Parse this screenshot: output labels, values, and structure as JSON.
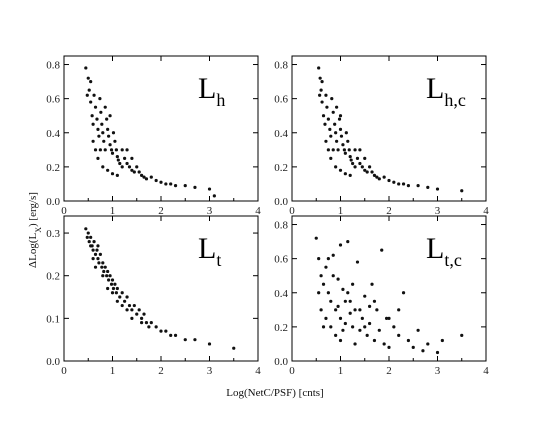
{
  "chart_data": [
    {
      "type": "scatter",
      "panel_label": {
        "main": "L",
        "sub": "h"
      },
      "xlim": [
        0,
        4
      ],
      "ylim": [
        0,
        0.85
      ],
      "xticks": [
        "0",
        "1",
        "2",
        "3",
        "4"
      ],
      "yticks": [
        "0.0",
        "0.2",
        "0.4",
        "0.6",
        "0.8"
      ],
      "xtick_values": [
        0,
        1,
        2,
        3,
        4
      ],
      "ytick_values": [
        0,
        0.2,
        0.4,
        0.6,
        0.8
      ],
      "grid": false,
      "points": [
        [
          0.45,
          0.78
        ],
        [
          0.5,
          0.72
        ],
        [
          0.52,
          0.65
        ],
        [
          0.55,
          0.58
        ],
        [
          0.58,
          0.5
        ],
        [
          0.6,
          0.45
        ],
        [
          0.62,
          0.62
        ],
        [
          0.65,
          0.55
        ],
        [
          0.68,
          0.48
        ],
        [
          0.7,
          0.42
        ],
        [
          0.72,
          0.38
        ],
        [
          0.74,
          0.6
        ],
        [
          0.76,
          0.52
        ],
        [
          0.78,
          0.45
        ],
        [
          0.8,
          0.4
        ],
        [
          0.82,
          0.35
        ],
        [
          0.85,
          0.3
        ],
        [
          0.88,
          0.48
        ],
        [
          0.9,
          0.42
        ],
        [
          0.92,
          0.38
        ],
        [
          0.95,
          0.33
        ],
        [
          0.98,
          0.3
        ],
        [
          1.0,
          0.28
        ],
        [
          1.02,
          0.4
        ],
        [
          1.05,
          0.35
        ],
        [
          1.08,
          0.3
        ],
        [
          1.1,
          0.26
        ],
        [
          1.12,
          0.24
        ],
        [
          1.15,
          0.22
        ],
        [
          1.2,
          0.3
        ],
        [
          1.25,
          0.25
        ],
        [
          1.3,
          0.22
        ],
        [
          1.35,
          0.2
        ],
        [
          1.4,
          0.18
        ],
        [
          1.45,
          0.17
        ],
        [
          1.5,
          0.2
        ],
        [
          1.55,
          0.17
        ],
        [
          1.6,
          0.15
        ],
        [
          1.65,
          0.14
        ],
        [
          1.7,
          0.13
        ],
        [
          1.8,
          0.14
        ],
        [
          1.9,
          0.12
        ],
        [
          2.0,
          0.11
        ],
        [
          2.1,
          0.1
        ],
        [
          2.2,
          0.1
        ],
        [
          2.3,
          0.09
        ],
        [
          2.5,
          0.09
        ],
        [
          2.7,
          0.08
        ],
        [
          3.0,
          0.07
        ],
        [
          3.1,
          0.03
        ],
        [
          0.48,
          0.62
        ],
        [
          0.55,
          0.7
        ],
        [
          0.6,
          0.35
        ],
        [
          0.7,
          0.25
        ],
        [
          0.8,
          0.2
        ],
        [
          0.9,
          0.18
        ],
        [
          1.0,
          0.16
        ],
        [
          1.1,
          0.15
        ],
        [
          0.95,
          0.5
        ],
        [
          0.85,
          0.55
        ],
        [
          1.3,
          0.3
        ],
        [
          1.4,
          0.25
        ],
        [
          1.2,
          0.2
        ],
        [
          0.75,
          0.3
        ],
        [
          0.65,
          0.3
        ]
      ]
    },
    {
      "type": "scatter",
      "panel_label": {
        "main": "L",
        "sub": "h,c"
      },
      "xlim": [
        0,
        4
      ],
      "ylim": [
        0,
        0.85
      ],
      "xticks": [
        "0",
        "1",
        "2",
        "3",
        "4"
      ],
      "yticks": [
        "0.0",
        "0.2",
        "0.4",
        "0.6",
        "0.8"
      ],
      "xtick_values": [
        0,
        1,
        2,
        3,
        4
      ],
      "ytick_values": [
        0,
        0.2,
        0.4,
        0.6,
        0.8
      ],
      "grid": false,
      "points": [
        [
          0.55,
          0.78
        ],
        [
          0.58,
          0.72
        ],
        [
          0.6,
          0.65
        ],
        [
          0.62,
          0.58
        ],
        [
          0.65,
          0.5
        ],
        [
          0.68,
          0.45
        ],
        [
          0.7,
          0.62
        ],
        [
          0.72,
          0.55
        ],
        [
          0.75,
          0.48
        ],
        [
          0.78,
          0.42
        ],
        [
          0.8,
          0.38
        ],
        [
          0.82,
          0.6
        ],
        [
          0.85,
          0.52
        ],
        [
          0.88,
          0.45
        ],
        [
          0.9,
          0.4
        ],
        [
          0.92,
          0.35
        ],
        [
          0.95,
          0.3
        ],
        [
          0.98,
          0.48
        ],
        [
          1.0,
          0.42
        ],
        [
          1.02,
          0.38
        ],
        [
          1.05,
          0.33
        ],
        [
          1.08,
          0.3
        ],
        [
          1.1,
          0.28
        ],
        [
          1.12,
          0.4
        ],
        [
          1.15,
          0.35
        ],
        [
          1.18,
          0.3
        ],
        [
          1.2,
          0.26
        ],
        [
          1.22,
          0.24
        ],
        [
          1.25,
          0.22
        ],
        [
          1.3,
          0.3
        ],
        [
          1.35,
          0.25
        ],
        [
          1.4,
          0.22
        ],
        [
          1.45,
          0.2
        ],
        [
          1.5,
          0.18
        ],
        [
          1.55,
          0.17
        ],
        [
          1.6,
          0.2
        ],
        [
          1.65,
          0.17
        ],
        [
          1.7,
          0.15
        ],
        [
          1.75,
          0.14
        ],
        [
          1.8,
          0.13
        ],
        [
          1.9,
          0.14
        ],
        [
          2.0,
          0.12
        ],
        [
          2.1,
          0.11
        ],
        [
          2.2,
          0.1
        ],
        [
          2.3,
          0.1
        ],
        [
          2.4,
          0.09
        ],
        [
          2.6,
          0.09
        ],
        [
          2.8,
          0.08
        ],
        [
          3.0,
          0.07
        ],
        [
          3.5,
          0.06
        ],
        [
          0.57,
          0.62
        ],
        [
          0.62,
          0.7
        ],
        [
          0.7,
          0.35
        ],
        [
          0.8,
          0.25
        ],
        [
          0.9,
          0.2
        ],
        [
          1.0,
          0.18
        ],
        [
          1.1,
          0.16
        ],
        [
          1.2,
          0.15
        ],
        [
          1.0,
          0.5
        ],
        [
          0.92,
          0.55
        ],
        [
          1.4,
          0.3
        ],
        [
          1.5,
          0.25
        ],
        [
          1.3,
          0.2
        ],
        [
          0.85,
          0.3
        ],
        [
          0.75,
          0.3
        ]
      ]
    },
    {
      "type": "scatter",
      "panel_label": {
        "main": "L",
        "sub": "t"
      },
      "xlim": [
        0,
        4
      ],
      "ylim": [
        0,
        0.34
      ],
      "xticks": [
        "0",
        "1",
        "2",
        "3",
        "4"
      ],
      "yticks": [
        "0.0",
        "0.1",
        "0.2",
        "0.3"
      ],
      "xtick_values": [
        0,
        1,
        2,
        3,
        4
      ],
      "ytick_values": [
        0,
        0.1,
        0.2,
        0.3
      ],
      "grid": false,
      "points": [
        [
          0.45,
          0.31
        ],
        [
          0.5,
          0.3
        ],
        [
          0.52,
          0.28
        ],
        [
          0.55,
          0.29
        ],
        [
          0.58,
          0.27
        ],
        [
          0.6,
          0.26
        ],
        [
          0.62,
          0.28
        ],
        [
          0.65,
          0.25
        ],
        [
          0.68,
          0.26
        ],
        [
          0.7,
          0.24
        ],
        [
          0.72,
          0.23
        ],
        [
          0.75,
          0.25
        ],
        [
          0.78,
          0.22
        ],
        [
          0.8,
          0.23
        ],
        [
          0.82,
          0.21
        ],
        [
          0.85,
          0.22
        ],
        [
          0.88,
          0.2
        ],
        [
          0.9,
          0.21
        ],
        [
          0.92,
          0.19
        ],
        [
          0.95,
          0.2
        ],
        [
          0.98,
          0.18
        ],
        [
          1.0,
          0.19
        ],
        [
          1.02,
          0.17
        ],
        [
          1.05,
          0.18
        ],
        [
          1.08,
          0.16
        ],
        [
          1.1,
          0.17
        ],
        [
          1.15,
          0.15
        ],
        [
          1.2,
          0.16
        ],
        [
          1.25,
          0.14
        ],
        [
          1.3,
          0.15
        ],
        [
          1.35,
          0.13
        ],
        [
          1.4,
          0.12
        ],
        [
          1.45,
          0.13
        ],
        [
          1.5,
          0.11
        ],
        [
          1.55,
          0.12
        ],
        [
          1.6,
          0.1
        ],
        [
          1.65,
          0.11
        ],
        [
          1.7,
          0.09
        ],
        [
          1.8,
          0.09
        ],
        [
          1.9,
          0.08
        ],
        [
          2.0,
          0.07
        ],
        [
          2.1,
          0.07
        ],
        [
          2.2,
          0.06
        ],
        [
          2.3,
          0.06
        ],
        [
          2.5,
          0.05
        ],
        [
          2.7,
          0.05
        ],
        [
          3.0,
          0.04
        ],
        [
          3.5,
          0.03
        ],
        [
          0.48,
          0.29
        ],
        [
          0.55,
          0.27
        ],
        [
          0.6,
          0.24
        ],
        [
          0.7,
          0.27
        ],
        [
          0.8,
          0.2
        ],
        [
          0.9,
          0.17
        ],
        [
          1.0,
          0.16
        ],
        [
          1.1,
          0.14
        ],
        [
          1.2,
          0.13
        ],
        [
          1.3,
          0.12
        ],
        [
          1.4,
          0.1
        ],
        [
          1.6,
          0.09
        ],
        [
          1.75,
          0.08
        ],
        [
          0.65,
          0.22
        ]
      ]
    },
    {
      "type": "scatter",
      "panel_label": {
        "main": "L",
        "sub": "t,c"
      },
      "xlim": [
        0,
        4
      ],
      "ylim": [
        0,
        0.85
      ],
      "xticks": [
        "0",
        "1",
        "2",
        "3",
        "4"
      ],
      "yticks": [
        "0.0",
        "0.2",
        "0.4",
        "0.6",
        "0.8"
      ],
      "xtick_values": [
        0,
        1,
        2,
        3,
        4
      ],
      "ytick_values": [
        0,
        0.2,
        0.4,
        0.6,
        0.8
      ],
      "grid": false,
      "points": [
        [
          0.5,
          0.72
        ],
        [
          0.55,
          0.6
        ],
        [
          0.6,
          0.5
        ],
        [
          0.65,
          0.45
        ],
        [
          0.7,
          0.55
        ],
        [
          0.75,
          0.4
        ],
        [
          0.8,
          0.35
        ],
        [
          0.85,
          0.62
        ],
        [
          0.9,
          0.3
        ],
        [
          0.95,
          0.48
        ],
        [
          1.0,
          0.25
        ],
        [
          1.05,
          0.42
        ],
        [
          1.1,
          0.22
        ],
        [
          1.15,
          0.7
        ],
        [
          1.2,
          0.35
        ],
        [
          1.25,
          0.2
        ],
        [
          1.3,
          0.3
        ],
        [
          1.35,
          0.58
        ],
        [
          1.4,
          0.18
        ],
        [
          1.45,
          0.25
        ],
        [
          1.5,
          0.38
        ],
        [
          1.55,
          0.15
        ],
        [
          1.6,
          0.22
        ],
        [
          1.65,
          0.45
        ],
        [
          1.7,
          0.12
        ],
        [
          1.75,
          0.3
        ],
        [
          1.8,
          0.18
        ],
        [
          1.85,
          0.65
        ],
        [
          1.9,
          0.1
        ],
        [
          1.95,
          0.25
        ],
        [
          2.0,
          0.08
        ],
        [
          2.1,
          0.2
        ],
        [
          2.2,
          0.15
        ],
        [
          2.3,
          0.4
        ],
        [
          2.4,
          0.12
        ],
        [
          2.5,
          0.08
        ],
        [
          2.6,
          0.18
        ],
        [
          2.7,
          0.06
        ],
        [
          2.8,
          0.1
        ],
        [
          3.0,
          0.05
        ],
        [
          3.1,
          0.12
        ],
        [
          3.5,
          0.15
        ],
        [
          0.6,
          0.3
        ],
        [
          0.7,
          0.25
        ],
        [
          0.8,
          0.2
        ],
        [
          0.9,
          0.15
        ],
        [
          1.0,
          0.12
        ],
        [
          1.1,
          0.35
        ],
        [
          1.2,
          0.28
        ],
        [
          1.3,
          0.1
        ],
        [
          0.75,
          0.6
        ],
        [
          0.85,
          0.5
        ],
        [
          0.95,
          0.32
        ],
        [
          1.05,
          0.18
        ],
        [
          1.15,
          0.4
        ],
        [
          1.4,
          0.3
        ],
        [
          1.6,
          0.32
        ],
        [
          1.0,
          0.68
        ],
        [
          0.55,
          0.4
        ],
        [
          0.65,
          0.2
        ],
        [
          1.25,
          0.45
        ],
        [
          1.5,
          0.2
        ],
        [
          1.7,
          0.35
        ],
        [
          2.0,
          0.25
        ],
        [
          2.2,
          0.3
        ]
      ]
    }
  ],
  "axes": {
    "ylabel": "ΔLog(L",
    "ylabel_sub": "X",
    "ylabel_tail": ") [erg/s]",
    "xlabel": "Log(NetC/PSF) [cnts]"
  }
}
